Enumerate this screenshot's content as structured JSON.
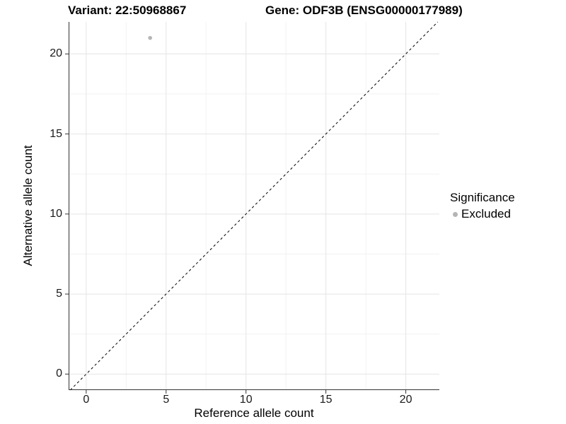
{
  "title": {
    "variant": "Variant: 22:50968867",
    "gene": "Gene: ODF3B (ENSG00000177989)"
  },
  "axes": {
    "x": {
      "label": "Reference allele count",
      "ticks": [
        0,
        5,
        10,
        15,
        20
      ]
    },
    "y": {
      "label": "Alternative allele count",
      "ticks": [
        0,
        5,
        10,
        15,
        20
      ]
    }
  },
  "legend": {
    "title": "Significance",
    "items": [
      {
        "label": "Excluded",
        "color": "#b5b5b5"
      }
    ]
  },
  "colors": {
    "point": "#b5b5b5",
    "grid_major": "#e4e4e4",
    "grid_minor": "#f2f2f2",
    "axis": "#333333",
    "tick": "#333333",
    "identity_line": "#000000"
  },
  "chart_data": {
    "type": "scatter",
    "title": "Variant: 22:50968867 / Gene: ODF3B (ENSG00000177989)",
    "xlabel": "Reference allele count",
    "ylabel": "Alternative allele count",
    "xlim": [
      -1.1,
      22.1
    ],
    "ylim": [
      -1.0,
      22.0
    ],
    "x_ticks": [
      0,
      5,
      10,
      15,
      20
    ],
    "y_ticks": [
      0,
      5,
      10,
      15,
      20
    ],
    "grid": true,
    "grid_minor": true,
    "legend_position": "right",
    "series": [
      {
        "name": "Excluded",
        "color": "#b5b5b5",
        "points": [
          {
            "x": 4,
            "y": 21
          }
        ]
      }
    ],
    "reference_line": {
      "type": "identity y=x",
      "style": "dashed",
      "color": "#000000"
    }
  }
}
